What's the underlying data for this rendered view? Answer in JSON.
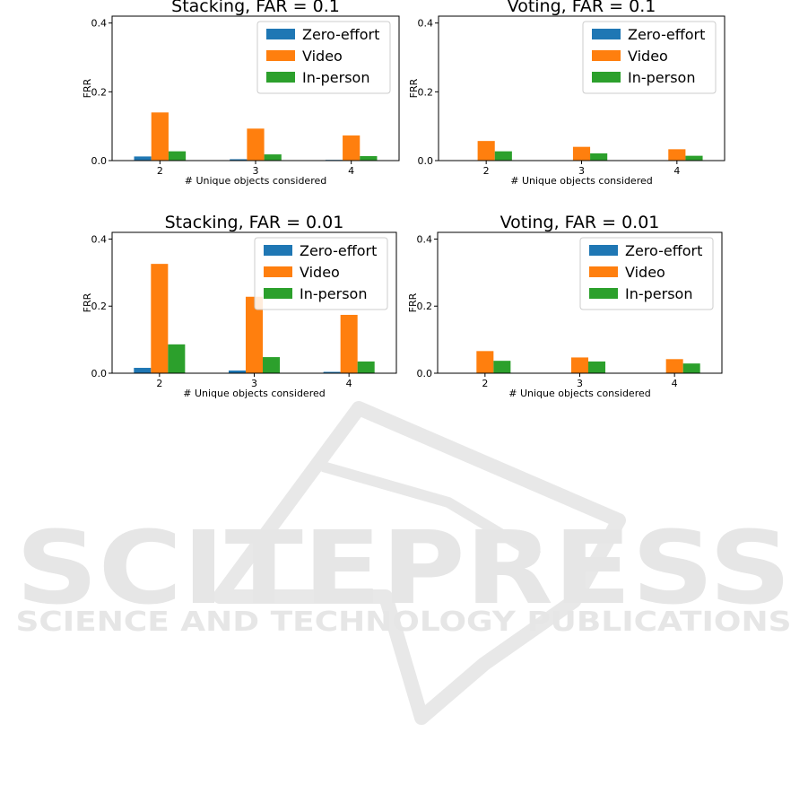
{
  "watermark": {
    "line1": "SCITEPRESS",
    "line2": "SCIENCE AND TECHNOLOGY PUBLICATIONS",
    "color": "#e6e6e6"
  },
  "colors": {
    "Zero-effort": "#1f77b4",
    "Video": "#ff7f0e",
    "In-person": "#2ca02c"
  },
  "chart_data": [
    {
      "type": "bar",
      "title": "Stacking, FAR = 0.1",
      "xlabel": "# Unique objects considered",
      "ylabel": "FRR",
      "categories": [
        "2",
        "3",
        "4"
      ],
      "ylim": [
        0,
        0.42
      ],
      "yticks": [
        "0.0",
        "0.2",
        "0.4"
      ],
      "legend_position": "top-right",
      "series": [
        {
          "name": "Zero-effort",
          "values": [
            0.012,
            0.004,
            0.002
          ]
        },
        {
          "name": "Video",
          "values": [
            0.14,
            0.093,
            0.073
          ]
        },
        {
          "name": "In-person",
          "values": [
            0.027,
            0.018,
            0.013
          ]
        }
      ]
    },
    {
      "type": "bar",
      "title": "Voting, FAR = 0.1",
      "xlabel": "# Unique objects considered",
      "ylabel": "FRR",
      "categories": [
        "2",
        "3",
        "4"
      ],
      "ylim": [
        0,
        0.42
      ],
      "yticks": [
        "0.0",
        "0.2",
        "0.4"
      ],
      "legend_position": "top-right",
      "series": [
        {
          "name": "Zero-effort",
          "values": [
            0.0,
            0.0,
            0.0
          ]
        },
        {
          "name": "Video",
          "values": [
            0.057,
            0.04,
            0.033
          ]
        },
        {
          "name": "In-person",
          "values": [
            0.027,
            0.021,
            0.014
          ]
        }
      ]
    },
    {
      "type": "bar",
      "title": "Stacking, FAR = 0.01",
      "xlabel": "# Unique objects considered",
      "ylabel": "FRR",
      "categories": [
        "2",
        "3",
        "4"
      ],
      "ylim": [
        0,
        0.42
      ],
      "yticks": [
        "0.0",
        "0.2",
        "0.4"
      ],
      "legend_position": "top-right",
      "series": [
        {
          "name": "Zero-effort",
          "values": [
            0.016,
            0.008,
            0.004
          ]
        },
        {
          "name": "Video",
          "values": [
            0.326,
            0.228,
            0.174
          ]
        },
        {
          "name": "In-person",
          "values": [
            0.086,
            0.048,
            0.035
          ]
        }
      ]
    },
    {
      "type": "bar",
      "title": "Voting, FAR = 0.01",
      "xlabel": "# Unique objects considered",
      "ylabel": "FRR",
      "categories": [
        "2",
        "3",
        "4"
      ],
      "ylim": [
        0,
        0.42
      ],
      "yticks": [
        "0.0",
        "0.2",
        "0.4"
      ],
      "legend_position": "top-right",
      "series": [
        {
          "name": "Zero-effort",
          "values": [
            0.0,
            0.0,
            0.0
          ]
        },
        {
          "name": "Video",
          "values": [
            0.066,
            0.047,
            0.042
          ]
        },
        {
          "name": "In-person",
          "values": [
            0.037,
            0.035,
            0.029
          ]
        }
      ]
    }
  ]
}
